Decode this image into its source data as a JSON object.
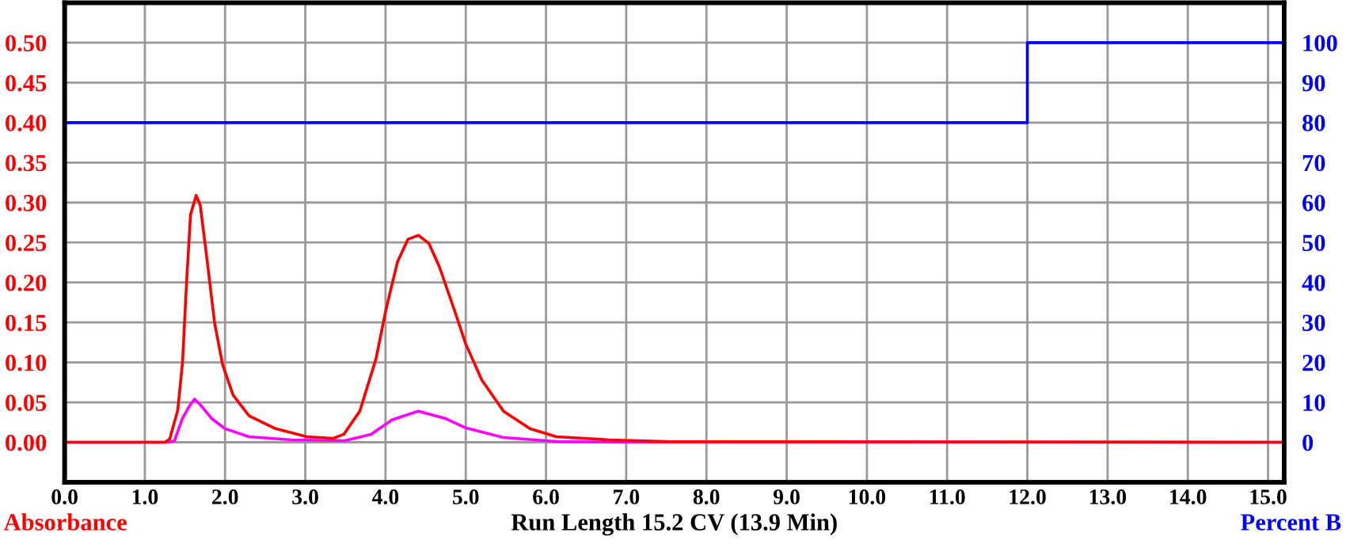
{
  "chart_data": {
    "type": "line",
    "xlabel": "Run Length 15.2 CV (13.9 Min)",
    "ylabel": "Absorbance",
    "y2label": "Percent B",
    "xlim": [
      0,
      15.2
    ],
    "ylim": [
      -0.05,
      0.55
    ],
    "y2lim": [
      -10,
      110
    ],
    "xticks": [
      {
        "value": 0,
        "label": "0.0"
      },
      {
        "value": 1,
        "label": "1.0"
      },
      {
        "value": 2,
        "label": "2.0"
      },
      {
        "value": 3,
        "label": "3.0"
      },
      {
        "value": 4,
        "label": "4.0"
      },
      {
        "value": 5,
        "label": "5.0"
      },
      {
        "value": 6,
        "label": "6.0"
      },
      {
        "value": 7,
        "label": "7.0"
      },
      {
        "value": 8,
        "label": "8.0"
      },
      {
        "value": 9,
        "label": "9.0"
      },
      {
        "value": 10,
        "label": "10.0"
      },
      {
        "value": 11,
        "label": "11.0"
      },
      {
        "value": 12,
        "label": "12.0"
      },
      {
        "value": 13,
        "label": "13.0"
      },
      {
        "value": 14,
        "label": "14.0"
      },
      {
        "value": 15,
        "label": "15.0"
      }
    ],
    "yticks": [
      {
        "value": 0,
        "label": "0.00"
      },
      {
        "value": 0.05,
        "label": "0.05"
      },
      {
        "value": 0.1,
        "label": "0.10"
      },
      {
        "value": 0.15,
        "label": "0.15"
      },
      {
        "value": 0.2,
        "label": "0.20"
      },
      {
        "value": 0.25,
        "label": "0.25"
      },
      {
        "value": 0.3,
        "label": "0.30"
      },
      {
        "value": 0.35,
        "label": "0.35"
      },
      {
        "value": 0.4,
        "label": "0.40"
      },
      {
        "value": 0.45,
        "label": "0.45"
      },
      {
        "value": 0.5,
        "label": "0.50"
      }
    ],
    "y2ticks": [
      0,
      10,
      20,
      30,
      40,
      50,
      60,
      70,
      80,
      90,
      100
    ],
    "grid": true,
    "legend": false,
    "marker": "none",
    "line_style": "solid",
    "series": [
      {
        "type": "step",
        "axis": "y2",
        "color": "#0000ff",
        "x": [
          0,
          12,
          15.2
        ],
        "values": [
          80,
          100,
          100
        ]
      },
      {
        "color": "#ff00ff",
        "x": [
          0,
          1.3,
          1.37,
          1.47,
          1.56,
          1.62,
          1.7,
          1.83,
          2.0,
          2.3,
          2.83,
          3.49,
          3.82,
          4.08,
          4.41,
          4.74,
          5.0,
          5.47,
          6.13,
          7.0,
          15.2
        ],
        "values": [
          0,
          0,
          0.002,
          0.03,
          0.046,
          0.054,
          0.046,
          0.03,
          0.017,
          0.007,
          0.003,
          0.002,
          0.01,
          0.028,
          0.039,
          0.03,
          0.018,
          0.006,
          0.001,
          0,
          0
        ]
      },
      {
        "color": "#ff0000",
        "x": [
          0,
          1.25,
          1.31,
          1.41,
          1.47,
          1.52,
          1.57,
          1.64,
          1.69,
          1.77,
          1.87,
          1.97,
          2.1,
          2.3,
          2.63,
          3.02,
          3.35,
          3.48,
          3.68,
          3.88,
          4.01,
          4.15,
          4.28,
          4.41,
          4.54,
          4.67,
          4.87,
          5.0,
          5.2,
          5.47,
          5.8,
          6.13,
          6.79,
          7.5,
          15.2
        ],
        "values": [
          0,
          0,
          0.004,
          0.04,
          0.1,
          0.2,
          0.285,
          0.309,
          0.297,
          0.233,
          0.149,
          0.097,
          0.059,
          0.033,
          0.017,
          0.007,
          0.005,
          0.01,
          0.039,
          0.104,
          0.168,
          0.226,
          0.254,
          0.259,
          0.249,
          0.22,
          0.162,
          0.123,
          0.078,
          0.039,
          0.017,
          0.007,
          0.003,
          0.001,
          0
        ]
      }
    ]
  }
}
